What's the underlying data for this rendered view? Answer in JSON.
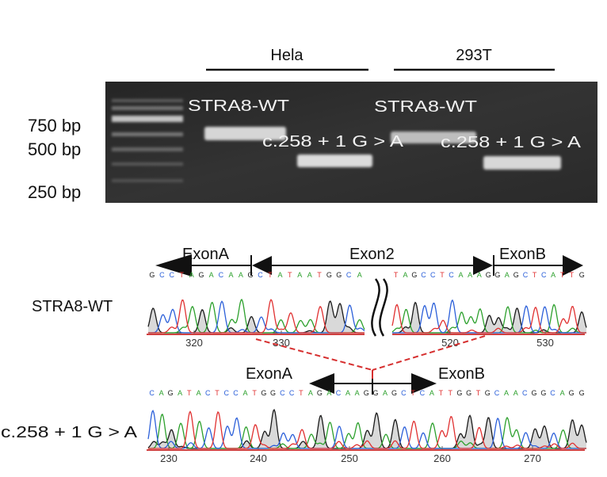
{
  "cell_lines": {
    "hela": "Hela",
    "t293": "293T"
  },
  "ladder": {
    "bp750": "750 bp",
    "bp500": "500 bp",
    "bp250": "250 bp"
  },
  "gel_lanes": [
    {
      "label": "STRA8-WT"
    },
    {
      "label": "c.258 + 1 G > A"
    },
    {
      "label": "STRA8-WT"
    },
    {
      "label": "c.258 + 1 G > A"
    }
  ],
  "wildtype": {
    "label": "STRA8-WT",
    "exon_a": "ExonA",
    "exon_2": "Exon2",
    "exon_b": "ExonB",
    "sequence_left": "G C C T A G A C A A G C T A T A A T G G C A",
    "sequence_right": "T A G C C T C A A A G G A G C T C A T T G",
    "positions": [
      "320",
      "330",
      "520",
      "530"
    ]
  },
  "mutant": {
    "label": "c.258 + 1 G > A",
    "exon_a": "ExonA",
    "exon_b": "ExonB",
    "sequence": "C A G A T A C T C C A T G G C C T A G A C A A G G A G C T C A T T G G T G C A A C G G C A G G",
    "positions": [
      "230",
      "240",
      "250",
      "260",
      "270"
    ]
  },
  "base_colors": {
    "A": "#2ca02c",
    "C": "#2b5fd9",
    "G": "#1a1a1a",
    "T": "#e03030"
  },
  "annotation_color": "#d62f2f"
}
